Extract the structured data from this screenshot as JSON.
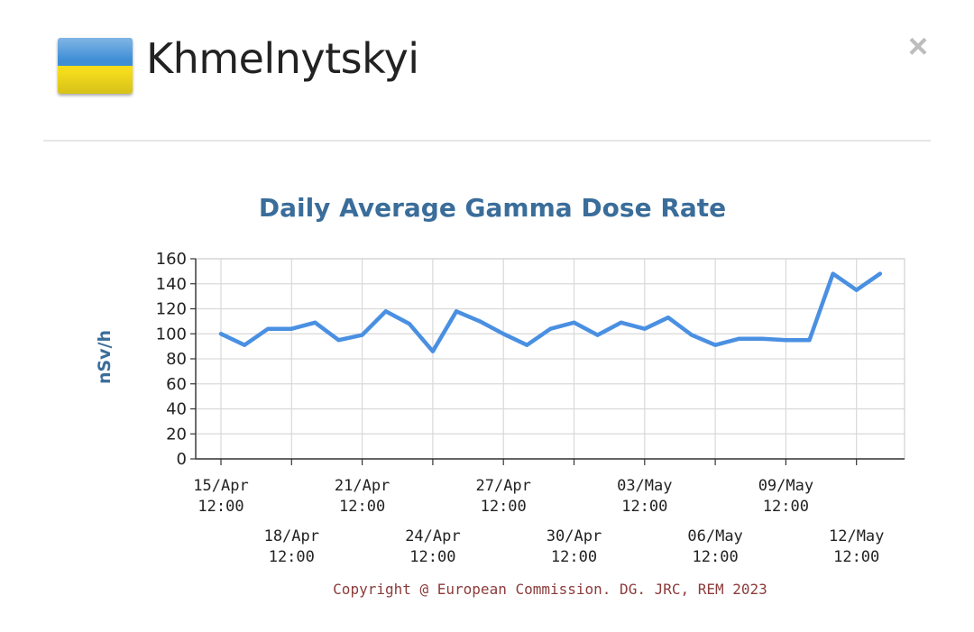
{
  "header": {
    "city": "Khmelnytskyi",
    "close_label": "×",
    "flag_colors": {
      "top": "#3e8ed6",
      "bottom": "#f4dc1c"
    }
  },
  "chart_data": {
    "type": "line",
    "title": "Daily Average Gamma Dose Rate",
    "xlabel": "",
    "ylabel": "nSv/h",
    "ylim": [
      0,
      160
    ],
    "yticks": [
      0,
      20,
      40,
      60,
      80,
      100,
      120,
      140,
      160
    ],
    "x": [
      "15/Apr 12:00",
      "16/Apr 12:00",
      "17/Apr 12:00",
      "18/Apr 12:00",
      "19/Apr 12:00",
      "20/Apr 12:00",
      "21/Apr 12:00",
      "22/Apr 12:00",
      "23/Apr 12:00",
      "24/Apr 12:00",
      "25/Apr 12:00",
      "26/Apr 12:00",
      "27/Apr 12:00",
      "28/Apr 12:00",
      "29/Apr 12:00",
      "30/Apr 12:00",
      "01/May 12:00",
      "02/May 12:00",
      "03/May 12:00",
      "04/May 12:00",
      "05/May 12:00",
      "06/May 12:00",
      "07/May 12:00",
      "08/May 12:00",
      "09/May 12:00",
      "10/May 12:00",
      "11/May 12:00",
      "12/May 12:00",
      "13/May 12:00"
    ],
    "xtick_labels": [
      {
        "date": "15/Apr",
        "time": "12:00",
        "index": 0,
        "row": 0
      },
      {
        "date": "18/Apr",
        "time": "12:00",
        "index": 3,
        "row": 1
      },
      {
        "date": "21/Apr",
        "time": "12:00",
        "index": 6,
        "row": 0
      },
      {
        "date": "24/Apr",
        "time": "12:00",
        "index": 9,
        "row": 1
      },
      {
        "date": "27/Apr",
        "time": "12:00",
        "index": 12,
        "row": 0
      },
      {
        "date": "30/Apr",
        "time": "12:00",
        "index": 15,
        "row": 1
      },
      {
        "date": "03/May",
        "time": "12:00",
        "index": 18,
        "row": 0
      },
      {
        "date": "06/May",
        "time": "12:00",
        "index": 21,
        "row": 1
      },
      {
        "date": "09/May",
        "time": "12:00",
        "index": 24,
        "row": 0
      },
      {
        "date": "12/May",
        "time": "12:00",
        "index": 27,
        "row": 1
      }
    ],
    "series": [
      {
        "values": [
          100,
          91,
          104,
          104,
          109,
          95,
          99,
          118,
          108,
          86,
          118,
          110,
          100,
          91,
          104,
          109,
          99,
          109,
          104,
          113,
          99,
          91,
          96,
          96,
          95,
          95,
          148,
          135,
          148
        ]
      }
    ],
    "grid": true,
    "line_color": "#4a90e2",
    "copyright": "Copyright @ European Commission. DG. JRC, REM 2023"
  }
}
